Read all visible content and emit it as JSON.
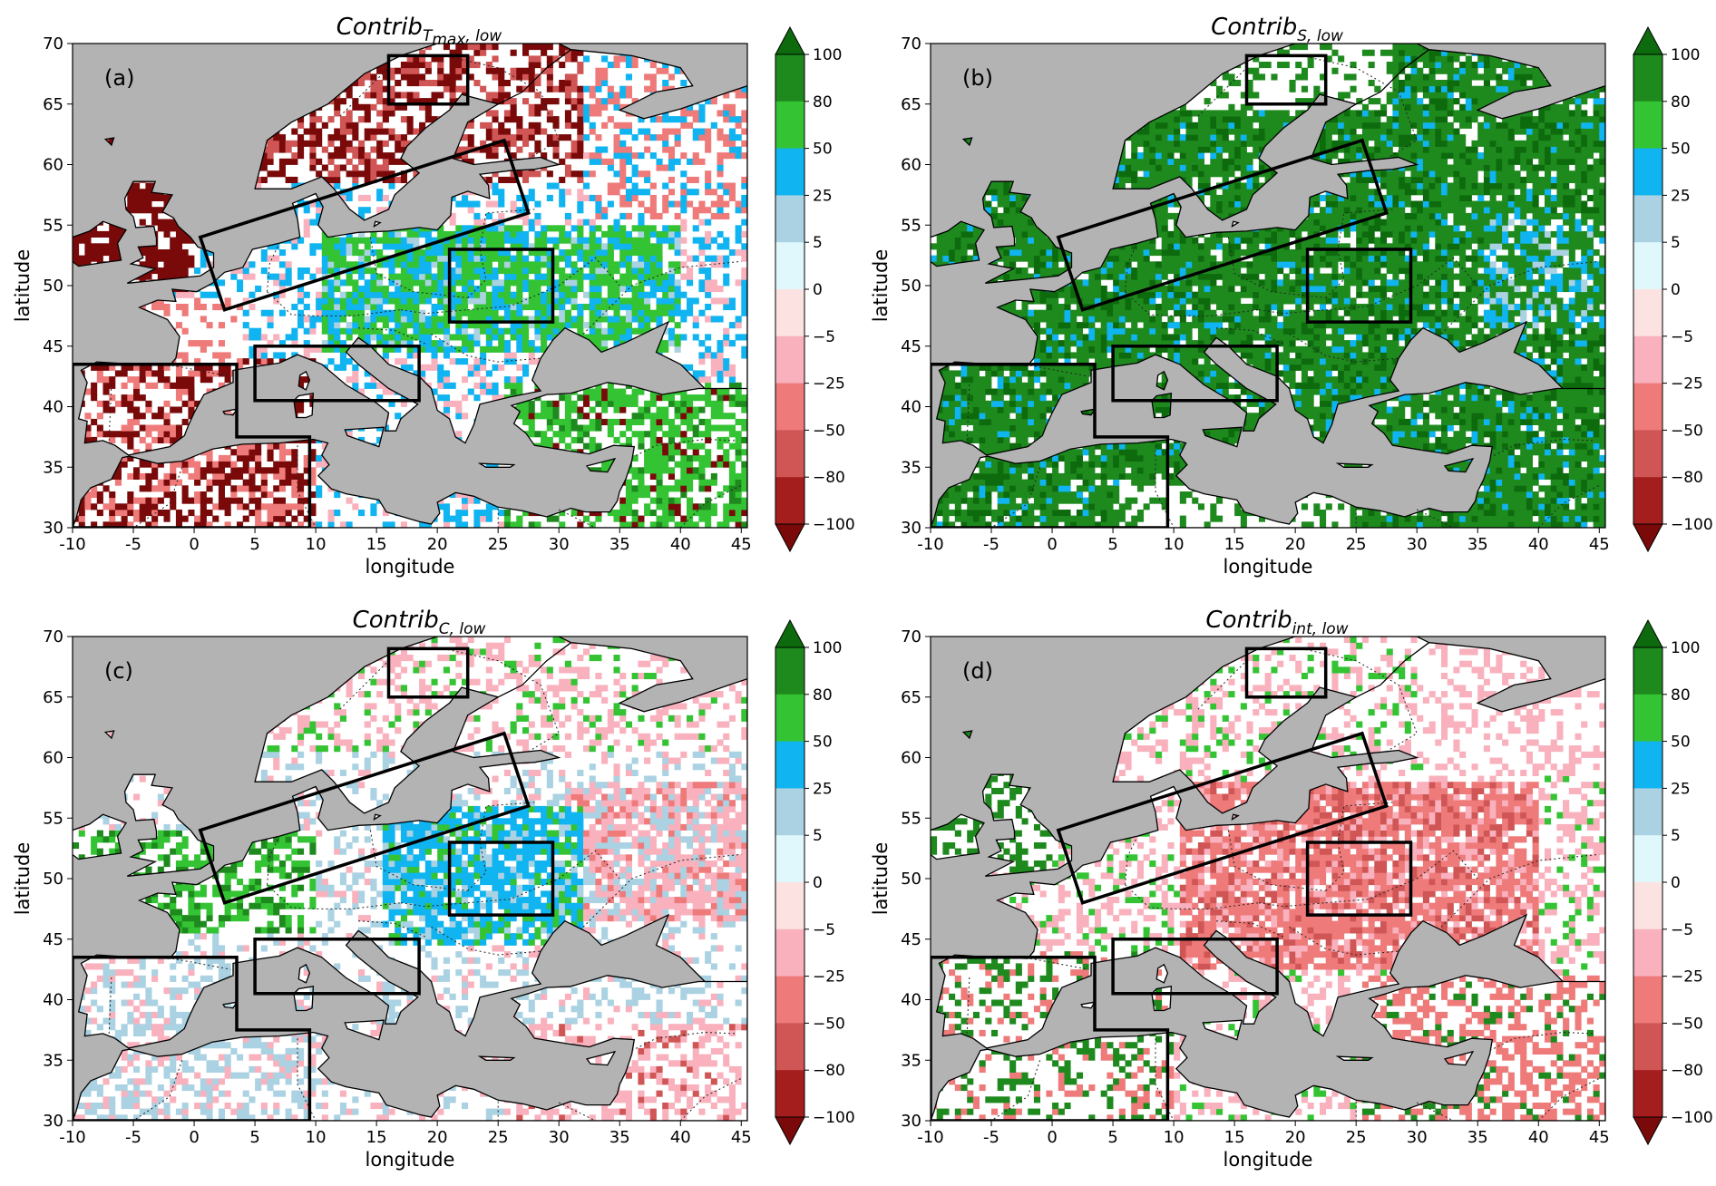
{
  "figure": {
    "xlabel": "longitude",
    "ylabel": "latitude",
    "x_ticks": [
      "-10",
      "-5",
      "0",
      "5",
      "10",
      "15",
      "20",
      "25",
      "30",
      "35",
      "40",
      "45"
    ],
    "y_ticks": [
      "30",
      "35",
      "40",
      "45",
      "50",
      "55",
      "60",
      "65",
      "70"
    ],
    "lon_range": [
      -10,
      45.5
    ],
    "lat_range": [
      30,
      70
    ],
    "colorbar": {
      "labels": [
        "100",
        "80",
        "50",
        "25",
        "5",
        "0",
        "−5",
        "−25",
        "−50",
        "−80",
        "−100"
      ],
      "colors": [
        "#1e8a1e",
        "#33c333",
        "#0fb4f0",
        "#aad2e2",
        "#e0f8fc",
        "#fde2e2",
        "#f8b1bd",
        "#ee7a7a",
        "#d05555",
        "#a51e1e"
      ],
      "over_color": "#0d6b0d",
      "under_color": "#7a0a0a"
    },
    "colors": {
      "ocean": "#b3b3b3",
      "land": "#ffffff",
      "box": "#000000"
    }
  },
  "panels": [
    {
      "id": "a",
      "letter": "(a)",
      "title_main": "Contrib",
      "title_sub": "T",
      "title_sub2": "max",
      "title_sub3": ", low",
      "dominant": "mixed-a"
    },
    {
      "id": "b",
      "letter": "(b)",
      "title_main": "Contrib",
      "title_sub": "S, low",
      "title_sub2": "",
      "title_sub3": "",
      "dominant": "green"
    },
    {
      "id": "c",
      "letter": "(c)",
      "title_main": "Contrib",
      "title_sub": "C, low",
      "title_sub2": "",
      "title_sub3": "",
      "dominant": "mixed-c"
    },
    {
      "id": "d",
      "letter": "(d)",
      "title_main": "Contrib",
      "title_sub": "int, low",
      "title_sub2": "",
      "title_sub3": "",
      "dominant": "red"
    }
  ],
  "regions": [
    {
      "name": "Scandinavia-north",
      "corners": [
        [
          16,
          65
        ],
        [
          22.5,
          65
        ],
        [
          22.5,
          69
        ],
        [
          16,
          69
        ]
      ]
    },
    {
      "name": "Central-Europe-tilted",
      "corners": [
        [
          2.5,
          48
        ],
        [
          27.5,
          56
        ],
        [
          25.5,
          62
        ],
        [
          0.5,
          54
        ]
      ]
    },
    {
      "name": "Eastern-Europe",
      "corners": [
        [
          21,
          47
        ],
        [
          29.5,
          47
        ],
        [
          29.5,
          53
        ],
        [
          21,
          53
        ]
      ]
    },
    {
      "name": "Italy",
      "corners": [
        [
          5,
          40.5
        ],
        [
          18.5,
          40.5
        ],
        [
          18.5,
          45
        ],
        [
          5,
          45
        ]
      ]
    },
    {
      "name": "Iberia-NorthAfrica",
      "corners": [
        [
          -10,
          30
        ],
        [
          9.5,
          30
        ],
        [
          9.5,
          37.5
        ],
        [
          3.5,
          37.5
        ],
        [
          3.5,
          43.5
        ],
        [
          -10,
          43.5
        ]
      ]
    }
  ]
}
